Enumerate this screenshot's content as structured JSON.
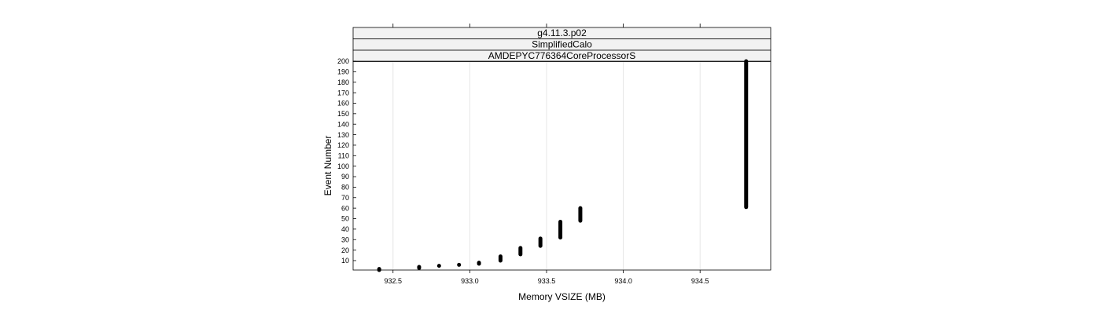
{
  "chart_data": {
    "type": "scatter",
    "strips": [
      "g4.11.3.p02",
      "SimplifiedCalo",
      "AMDEPYC776364CoreProcessorS"
    ],
    "xlabel": "Memory VSIZE (MB)",
    "ylabel": "Event Number",
    "xlim": [
      932.24,
      934.96
    ],
    "ylim": [
      1,
      200
    ],
    "x_ticks": [
      "932.5",
      "933.0",
      "933.5",
      "934.0",
      "934.5"
    ],
    "y_ticks": [
      "10",
      "20",
      "30",
      "40",
      "50",
      "60",
      "70",
      "80",
      "90",
      "100",
      "110",
      "120",
      "130",
      "140",
      "150",
      "160",
      "170",
      "180",
      "190",
      "200"
    ],
    "grid": true,
    "points": [
      {
        "x": 932.41,
        "y_min": 1,
        "y_max": 2
      },
      {
        "x": 932.67,
        "y_min": 3,
        "y_max": 4
      },
      {
        "x": 932.8,
        "y_min": 5,
        "y_max": 5
      },
      {
        "x": 932.93,
        "y_min": 6,
        "y_max": 6
      },
      {
        "x": 933.06,
        "y_min": 7,
        "y_max": 8
      },
      {
        "x": 933.2,
        "y_min": 10,
        "y_max": 14
      },
      {
        "x": 933.33,
        "y_min": 16,
        "y_max": 22
      },
      {
        "x": 933.46,
        "y_min": 24,
        "y_max": 31
      },
      {
        "x": 933.59,
        "y_min": 32,
        "y_max": 47
      },
      {
        "x": 933.72,
        "y_min": 48,
        "y_max": 60
      },
      {
        "x": 934.8,
        "y_min": 61,
        "y_max": 200
      }
    ]
  }
}
